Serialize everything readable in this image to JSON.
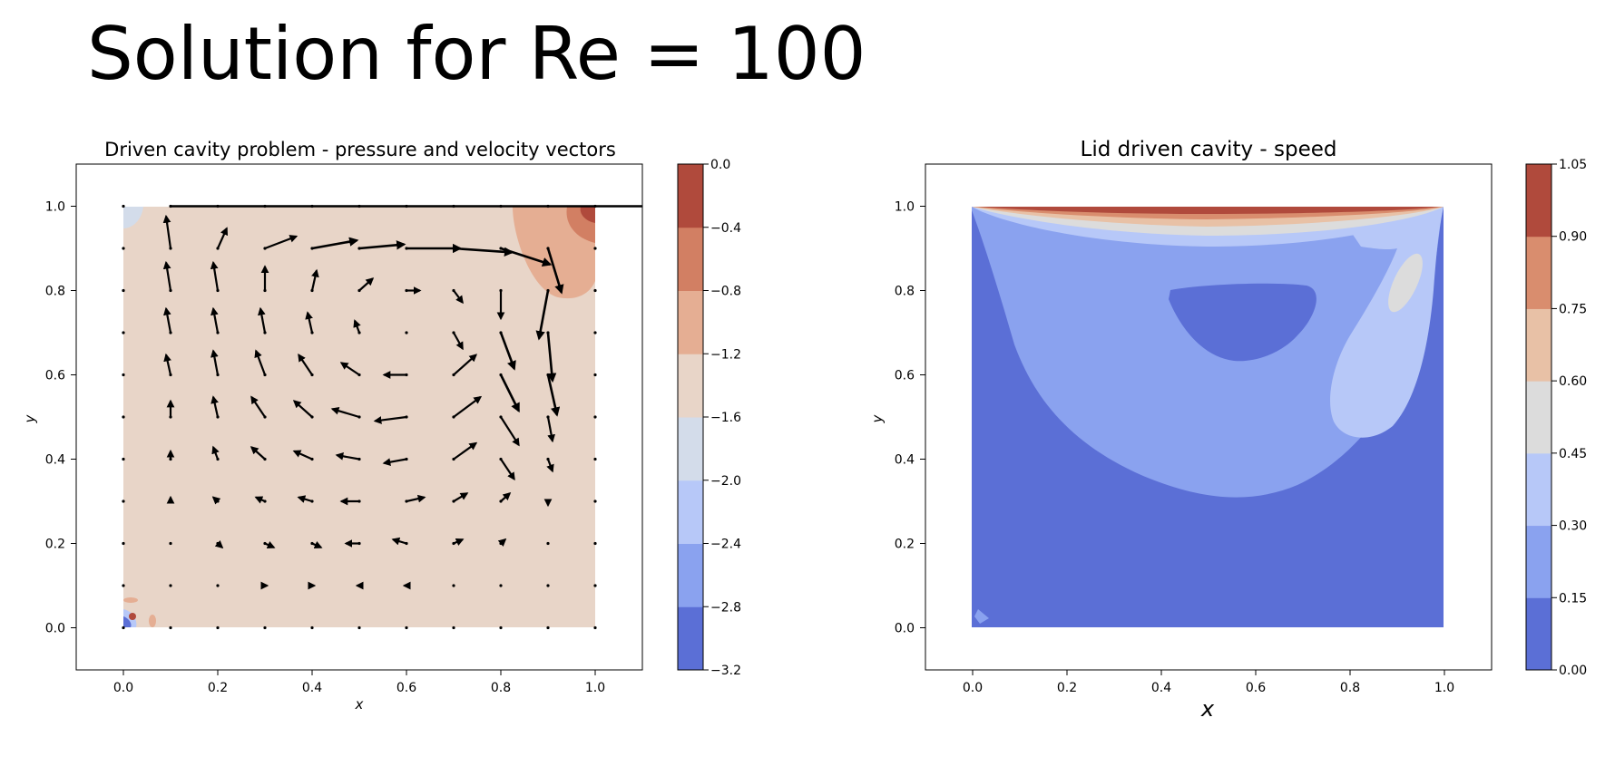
{
  "slide": {
    "title": "Solution for Re = 100"
  },
  "chart_data": [
    {
      "type": "contour+quiver",
      "title": "Driven cavity problem - pressure and velocity vectors",
      "xlabel": "x",
      "ylabel": "y",
      "xlim": [
        -0.1,
        1.1
      ],
      "ylim": [
        -0.1,
        1.1
      ],
      "xticks": [
        "0.0",
        "0.2",
        "0.4",
        "0.6",
        "0.8",
        "1.0"
      ],
      "yticks": [
        "0.0",
        "0.2",
        "0.4",
        "0.6",
        "0.8",
        "1.0"
      ],
      "colorbar": {
        "label_side": "right",
        "ticks": [
          "0.0",
          "−0.4",
          "−0.8",
          "−1.2",
          "−1.6",
          "−2.0",
          "−2.4",
          "−2.8",
          "−3.2"
        ],
        "levels": [
          -3.2,
          -2.8,
          -2.4,
          -2.0,
          -1.6,
          -1.2,
          -0.8,
          -0.4,
          0.0
        ],
        "colors": [
          "#5b6fd6",
          "#8aa2ef",
          "#b7c8f8",
          "#d3dcea",
          "#e8d5c8",
          "#e5ae93",
          "#d27f63",
          "#b04a3c"
        ]
      },
      "background_level_color": "#e8d5c8",
      "pressure_regions": [
        {
          "region": "top-right corner high",
          "color": "#e5ae93"
        },
        {
          "region": "top-right corner core",
          "color": "#d27f63"
        },
        {
          "region": "top-right corner peak",
          "color": "#b04a3c"
        },
        {
          "region": "top-left corner low",
          "color": "#d3dcea"
        },
        {
          "region": "bottom-left corner",
          "color": "#5b6fd6"
        }
      ],
      "grid_spacing": 0.1,
      "quiver_vectors": [
        {
          "x": 0.1,
          "y": 1.0,
          "u": 1.1,
          "v": 0.0
        },
        {
          "x": 0.1,
          "y": 0.9,
          "u": -0.01,
          "v": 0.08
        },
        {
          "x": 0.2,
          "y": 0.9,
          "u": 0.02,
          "v": 0.05
        },
        {
          "x": 0.3,
          "y": 0.9,
          "u": 0.07,
          "v": 0.03
        },
        {
          "x": 0.4,
          "y": 0.9,
          "u": 0.1,
          "v": 0.02
        },
        {
          "x": 0.5,
          "y": 0.9,
          "u": 0.1,
          "v": 0.01
        },
        {
          "x": 0.6,
          "y": 0.9,
          "u": 0.12,
          "v": 0.0
        },
        {
          "x": 0.7,
          "y": 0.9,
          "u": 0.13,
          "v": -0.01
        },
        {
          "x": 0.8,
          "y": 0.9,
          "u": 0.11,
          "v": -0.04
        },
        {
          "x": 0.9,
          "y": 0.9,
          "u": 0.03,
          "v": -0.11
        },
        {
          "x": 0.1,
          "y": 0.8,
          "u": -0.01,
          "v": 0.07
        },
        {
          "x": 0.2,
          "y": 0.8,
          "u": -0.01,
          "v": 0.07
        },
        {
          "x": 0.3,
          "y": 0.8,
          "u": 0.0,
          "v": 0.06
        },
        {
          "x": 0.4,
          "y": 0.8,
          "u": 0.01,
          "v": 0.05
        },
        {
          "x": 0.5,
          "y": 0.8,
          "u": 0.03,
          "v": 0.03
        },
        {
          "x": 0.6,
          "y": 0.8,
          "u": 0.03,
          "v": 0.0
        },
        {
          "x": 0.7,
          "y": 0.8,
          "u": 0.02,
          "v": -0.03
        },
        {
          "x": 0.8,
          "y": 0.8,
          "u": 0.0,
          "v": -0.07
        },
        {
          "x": 0.9,
          "y": 0.8,
          "u": -0.02,
          "v": -0.12
        },
        {
          "x": 0.1,
          "y": 0.7,
          "u": -0.01,
          "v": 0.06
        },
        {
          "x": 0.2,
          "y": 0.7,
          "u": -0.01,
          "v": 0.06
        },
        {
          "x": 0.3,
          "y": 0.7,
          "u": -0.01,
          "v": 0.06
        },
        {
          "x": 0.4,
          "y": 0.7,
          "u": -0.01,
          "v": 0.05
        },
        {
          "x": 0.5,
          "y": 0.7,
          "u": -0.01,
          "v": 0.03
        },
        {
          "x": 0.6,
          "y": 0.7,
          "u": 0.0,
          "v": 0.0
        },
        {
          "x": 0.7,
          "y": 0.7,
          "u": 0.02,
          "v": -0.04
        },
        {
          "x": 0.8,
          "y": 0.7,
          "u": 0.03,
          "v": -0.09
        },
        {
          "x": 0.9,
          "y": 0.7,
          "u": 0.01,
          "v": -0.12
        },
        {
          "x": 0.1,
          "y": 0.6,
          "u": -0.01,
          "v": 0.05
        },
        {
          "x": 0.2,
          "y": 0.6,
          "u": -0.01,
          "v": 0.06
        },
        {
          "x": 0.3,
          "y": 0.6,
          "u": -0.02,
          "v": 0.06
        },
        {
          "x": 0.4,
          "y": 0.6,
          "u": -0.03,
          "v": 0.05
        },
        {
          "x": 0.5,
          "y": 0.6,
          "u": -0.04,
          "v": 0.03
        },
        {
          "x": 0.6,
          "y": 0.6,
          "u": -0.05,
          "v": 0.0
        },
        {
          "x": 0.7,
          "y": 0.6,
          "u": 0.05,
          "v": 0.05
        },
        {
          "x": 0.8,
          "y": 0.6,
          "u": 0.04,
          "v": -0.09
        },
        {
          "x": 0.9,
          "y": 0.6,
          "u": 0.02,
          "v": -0.1
        },
        {
          "x": 0.1,
          "y": 0.5,
          "u": 0.0,
          "v": 0.04
        },
        {
          "x": 0.2,
          "y": 0.5,
          "u": -0.01,
          "v": 0.05
        },
        {
          "x": 0.3,
          "y": 0.5,
          "u": -0.03,
          "v": 0.05
        },
        {
          "x": 0.4,
          "y": 0.5,
          "u": -0.04,
          "v": 0.04
        },
        {
          "x": 0.5,
          "y": 0.5,
          "u": -0.06,
          "v": 0.02
        },
        {
          "x": 0.6,
          "y": 0.5,
          "u": -0.07,
          "v": -0.01
        },
        {
          "x": 0.7,
          "y": 0.5,
          "u": 0.06,
          "v": 0.05
        },
        {
          "x": 0.8,
          "y": 0.5,
          "u": 0.04,
          "v": -0.07
        },
        {
          "x": 0.9,
          "y": 0.5,
          "u": 0.01,
          "v": -0.06
        },
        {
          "x": 0.1,
          "y": 0.4,
          "u": 0.0,
          "v": 0.02
        },
        {
          "x": 0.2,
          "y": 0.4,
          "u": -0.01,
          "v": 0.03
        },
        {
          "x": 0.3,
          "y": 0.4,
          "u": -0.03,
          "v": 0.03
        },
        {
          "x": 0.4,
          "y": 0.4,
          "u": -0.04,
          "v": 0.02
        },
        {
          "x": 0.5,
          "y": 0.4,
          "u": -0.05,
          "v": 0.01
        },
        {
          "x": 0.6,
          "y": 0.4,
          "u": -0.05,
          "v": -0.01
        },
        {
          "x": 0.7,
          "y": 0.4,
          "u": 0.05,
          "v": 0.04
        },
        {
          "x": 0.8,
          "y": 0.4,
          "u": 0.03,
          "v": -0.05
        },
        {
          "x": 0.9,
          "y": 0.4,
          "u": 0.01,
          "v": -0.03
        },
        {
          "x": 0.1,
          "y": 0.3,
          "u": 0.0,
          "v": 0.01
        },
        {
          "x": 0.2,
          "y": 0.3,
          "u": -0.01,
          "v": 0.01
        },
        {
          "x": 0.3,
          "y": 0.3,
          "u": -0.02,
          "v": 0.01
        },
        {
          "x": 0.4,
          "y": 0.3,
          "u": -0.03,
          "v": 0.01
        },
        {
          "x": 0.5,
          "y": 0.3,
          "u": -0.04,
          "v": 0.0
        },
        {
          "x": 0.6,
          "y": 0.3,
          "u": 0.04,
          "v": 0.01
        },
        {
          "x": 0.7,
          "y": 0.3,
          "u": 0.03,
          "v": 0.02
        },
        {
          "x": 0.8,
          "y": 0.3,
          "u": 0.02,
          "v": 0.02
        },
        {
          "x": 0.9,
          "y": 0.3,
          "u": 0.0,
          "v": -0.01
        },
        {
          "x": 0.2,
          "y": 0.2,
          "u": 0.01,
          "v": -0.01
        },
        {
          "x": 0.3,
          "y": 0.2,
          "u": 0.02,
          "v": -0.01
        },
        {
          "x": 0.4,
          "y": 0.2,
          "u": 0.02,
          "v": -0.01
        },
        {
          "x": 0.5,
          "y": 0.2,
          "u": -0.03,
          "v": 0.0
        },
        {
          "x": 0.6,
          "y": 0.2,
          "u": -0.03,
          "v": 0.01
        },
        {
          "x": 0.7,
          "y": 0.2,
          "u": 0.02,
          "v": 0.01
        },
        {
          "x": 0.8,
          "y": 0.2,
          "u": 0.01,
          "v": 0.01
        },
        {
          "x": 0.3,
          "y": 0.1,
          "u": 0.005,
          "v": 0.0
        },
        {
          "x": 0.4,
          "y": 0.1,
          "u": 0.005,
          "v": 0.0
        },
        {
          "x": 0.5,
          "y": 0.1,
          "u": -0.005,
          "v": 0.0
        },
        {
          "x": 0.6,
          "y": 0.1,
          "u": -0.005,
          "v": 0.0
        }
      ]
    },
    {
      "type": "contourf",
      "title": "Lid driven cavity - speed",
      "xlabel": "x",
      "ylabel": "y",
      "xlim": [
        -0.1,
        1.1
      ],
      "ylim": [
        -0.1,
        1.1
      ],
      "xticks": [
        "0.0",
        "0.2",
        "0.4",
        "0.6",
        "0.8",
        "1.0"
      ],
      "yticks": [
        "0.0",
        "0.2",
        "0.4",
        "0.6",
        "0.8",
        "1.0"
      ],
      "colorbar": {
        "label_side": "right",
        "ticks": [
          "1.05",
          "0.90",
          "0.75",
          "0.60",
          "0.45",
          "0.30",
          "0.15",
          "0.00"
        ],
        "levels": [
          0.0,
          0.15,
          0.3,
          0.45,
          0.6,
          0.75,
          0.9,
          1.05
        ],
        "colors": [
          "#5b6fd6",
          "#8aa2ef",
          "#b7c8f8",
          "#dcdcdc",
          "#e8c1a6",
          "#d98d6e",
          "#b04a3c"
        ]
      },
      "speed_regions": [
        {
          "region": "bulk (0.00-0.15)",
          "color": "#5b6fd6"
        },
        {
          "region": "upper recirculation (0.15-0.30)",
          "color": "#8aa2ef"
        },
        {
          "region": "right wall jet (0.30-0.45)",
          "color": "#b7c8f8"
        },
        {
          "region": "vortex core (0.00-0.15)",
          "color": "#5b6fd6"
        },
        {
          "region": "lid boundary layer (up to 1.05)",
          "color": "#b04a3c"
        }
      ]
    }
  ]
}
